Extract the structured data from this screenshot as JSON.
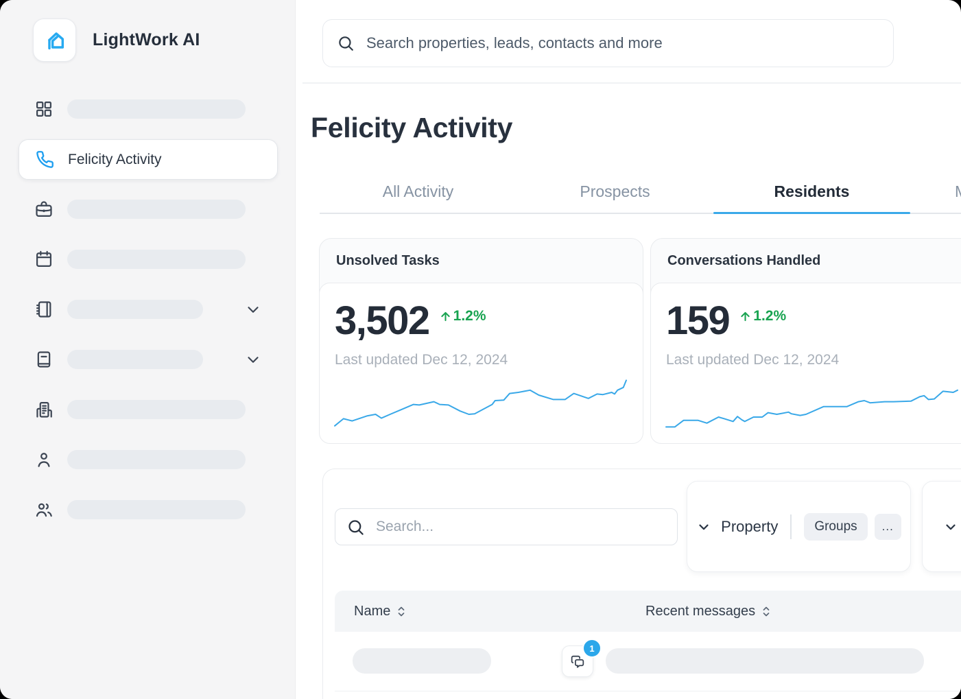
{
  "colors": {
    "accent_blue": "#2fa7ec",
    "logo_blue": "#27aaf1",
    "tab_underline": "#3aa9e9",
    "positive_green": "#18a350",
    "dark_text": "#28313e",
    "muted_text": "#8693a3",
    "skeleton": "#e8ebef",
    "badge_blue": "#2ba7ea"
  },
  "sidebar": {
    "brand": "LightWork AI",
    "active_item": {
      "label": "Felicity Activity"
    }
  },
  "topbar": {
    "search_placeholder": "Search properties, leads, contacts and more"
  },
  "page": {
    "title": "Felicity Activity"
  },
  "tabs": {
    "active_index": 2,
    "items": [
      {
        "label": "All Activity"
      },
      {
        "label": "Prospects"
      },
      {
        "label": "Residents"
      },
      {
        "label": "M"
      }
    ]
  },
  "stat_cards": [
    {
      "title": "Unsolved Tasks",
      "value": "3,502",
      "delta": "1.2%",
      "delta_direction": "up",
      "updated": "Last updated Dec 12, 2024"
    },
    {
      "title": "Conversations Handled",
      "value": "159",
      "delta": "1.2%",
      "delta_direction": "up",
      "updated": "Last updated Dec 12, 2024"
    }
  ],
  "filter_bar": {
    "search_placeholder": "Search...",
    "property_label": "Property",
    "groups_label": "Groups",
    "more_label": "..."
  },
  "table": {
    "columns": [
      {
        "label": "Name"
      },
      {
        "label": "Recent messages"
      }
    ],
    "rows": [
      {
        "message_badge_count": "1"
      }
    ]
  },
  "chart_data": [
    {
      "type": "line",
      "title": "Unsolved Tasks sparkline",
      "color": "#39a8e8",
      "axes": "hidden",
      "series": [
        {
          "name": "Unsolved Tasks",
          "points": [
            [
              0,
              1.4
            ],
            [
              3,
              2.7
            ],
            [
              6,
              2.3
            ],
            [
              11,
              3.2
            ],
            [
              14,
              3.5
            ],
            [
              16,
              2.8
            ],
            [
              19,
              3.5
            ],
            [
              23,
              4.4
            ],
            [
              27,
              5.3
            ],
            [
              29,
              5.2
            ],
            [
              34,
              5.8
            ],
            [
              36,
              5.3
            ],
            [
              39,
              5.2
            ],
            [
              43,
              4.1
            ],
            [
              46,
              3.5
            ],
            [
              48,
              3.6
            ],
            [
              54,
              5.3
            ],
            [
              55,
              6.0
            ],
            [
              58,
              6.1
            ],
            [
              60,
              7.3
            ],
            [
              63,
              7.5
            ],
            [
              67,
              7.9
            ],
            [
              70,
              7.0
            ],
            [
              75,
              6.2
            ],
            [
              79,
              6.2
            ],
            [
              82,
              7.3
            ],
            [
              87,
              6.4
            ],
            [
              90,
              7.2
            ],
            [
              92,
              7.1
            ],
            [
              95,
              7.5
            ],
            [
              96,
              7.2
            ],
            [
              97,
              7.9
            ],
            [
              99,
              8.4
            ],
            [
              100,
              9.7
            ]
          ]
        }
      ]
    },
    {
      "type": "line",
      "title": "Conversations Handled sparkline",
      "color": "#39a8e8",
      "axes": "hidden",
      "series": [
        {
          "name": "Conversations Handled",
          "points": [
            [
              0,
              1.2
            ],
            [
              3,
              1.2
            ],
            [
              6,
              2.4
            ],
            [
              11,
              2.4
            ],
            [
              14,
              1.9
            ],
            [
              18,
              3.0
            ],
            [
              20,
              2.7
            ],
            [
              23,
              2.2
            ],
            [
              24.5,
              3.1
            ],
            [
              26,
              2.5
            ],
            [
              27,
              2.2
            ],
            [
              30,
              3.0
            ],
            [
              33,
              3.0
            ],
            [
              35,
              3.8
            ],
            [
              38,
              3.5
            ],
            [
              42,
              3.9
            ],
            [
              43,
              3.6
            ],
            [
              46,
              3.3
            ],
            [
              48,
              3.5
            ],
            [
              54,
              4.9
            ],
            [
              62,
              4.9
            ],
            [
              66,
              5.8
            ],
            [
              68,
              6.0
            ],
            [
              70,
              5.6
            ],
            [
              75,
              5.8
            ],
            [
              78,
              5.8
            ],
            [
              84,
              5.9
            ],
            [
              87,
              6.7
            ],
            [
              88.5,
              6.9
            ],
            [
              90,
              6.2
            ],
            [
              92,
              6.3
            ],
            [
              95,
              7.7
            ],
            [
              97,
              7.6
            ],
            [
              98.5,
              7.5
            ],
            [
              100,
              7.9
            ]
          ]
        }
      ]
    }
  ]
}
